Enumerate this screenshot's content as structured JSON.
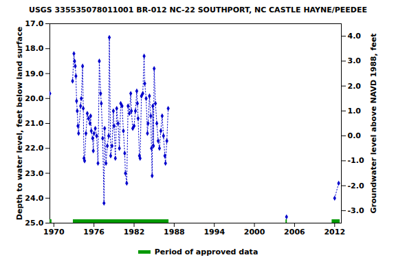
{
  "chart_data": {
    "type": "line",
    "title": "USGS 335535078011001 BR-012 NC-22 SOUTHPORT, NC CASTLE HAYNE/PEEDEE",
    "y_label": "Depth to water level, feet below land surface",
    "y2_label": "Groundwater level above NAVD 1988, feet",
    "color": "#0000cc",
    "marker": "diamond",
    "line_style": "dotted",
    "grid": false,
    "legend": "bottom",
    "xlim": [
      1969.4,
      2013.0
    ],
    "xticks": [
      1970,
      1976,
      1982,
      1988,
      1994,
      2000,
      2006,
      2012
    ],
    "ylim": [
      25.0,
      17.0
    ],
    "yticks": [
      {
        "value": 17,
        "label": "17.0"
      },
      {
        "value": 18,
        "label": "18.0"
      },
      {
        "value": 19,
        "label": "19.0"
      },
      {
        "value": 20,
        "label": "20.0"
      },
      {
        "value": 21,
        "label": "21.0"
      },
      {
        "value": 22,
        "label": "22.0"
      },
      {
        "value": 23,
        "label": "23.0"
      },
      {
        "value": 24,
        "label": "24.0"
      },
      {
        "value": 25,
        "label": "25.0"
      }
    ],
    "y2lim": [
      -3.5,
      4.5
    ],
    "y2ticks": [
      {
        "value": 4,
        "label": "4.0"
      },
      {
        "value": 3,
        "label": "3.0"
      },
      {
        "value": 2,
        "label": "2.0"
      },
      {
        "value": 1,
        "label": "1.0"
      },
      {
        "value": 0,
        "label": "0.0"
      },
      {
        "value": -1,
        "label": "-1.0"
      },
      {
        "value": -2,
        "label": "-2.0"
      },
      {
        "value": -3,
        "label": "-3.0"
      }
    ],
    "x": [
      1969.4,
      null,
      1972.8,
      1973.0,
      1973.1,
      1973.2,
      1973.3,
      1973.4,
      1973.5,
      1973.6,
      1973.7,
      1974.0,
      1974.1,
      1974.3,
      1974.4,
      1974.5,
      1974.6,
      1974.8,
      1975.0,
      1975.2,
      1975.4,
      1975.5,
      1975.6,
      1975.8,
      1975.9,
      1976.0,
      1976.2,
      1976.4,
      1976.6,
      1976.8,
      1977.0,
      1977.1,
      1977.3,
      1977.5,
      1977.6,
      1977.8,
      1978.0,
      1978.2,
      1978.3,
      1978.5,
      1978.7,
      1978.9,
      1979.0,
      1979.2,
      1979.4,
      1979.6,
      1979.8,
      1980.0,
      1980.2,
      1980.4,
      1980.6,
      1980.7,
      1980.9,
      1981.1,
      1981.3,
      1981.5,
      1981.6,
      1981.8,
      1982.0,
      1982.2,
      1982.4,
      1982.5,
      1982.6,
      1982.8,
      1982.9,
      1983.1,
      1983.3,
      1983.5,
      1983.6,
      1983.8,
      1984.0,
      1984.1,
      1984.3,
      1984.5,
      1984.6,
      1984.7,
      1984.8,
      1984.9,
      1985.0,
      1985.2,
      1985.4,
      1985.6,
      1985.8,
      1986.0,
      1986.2,
      1986.4,
      1986.6,
      1986.7,
      1986.9,
      1987.1,
      null,
      2004.8,
      null,
      2012.0,
      2012.6
    ],
    "values": [
      19.8,
      null,
      19.3,
      18.2,
      18.5,
      18.7,
      19.1,
      20.1,
      20.5,
      21.1,
      21.4,
      20.3,
      20.0,
      18.7,
      20.4,
      22.4,
      22.5,
      21.4,
      20.6,
      20.8,
      21.0,
      20.7,
      21.3,
      21.6,
      22.1,
      21.4,
      21.2,
      21.5,
      22.6,
      18.5,
      19.8,
      20.2,
      21.6,
      24.2,
      21.2,
      22.6,
      21.9,
      21.5,
      17.55,
      22.3,
      21.9,
      20.5,
      21.1,
      22.4,
      20.4,
      21.0,
      22.0,
      20.2,
      20.3,
      21.3,
      22.2,
      23.0,
      23.4,
      20.3,
      20.6,
      19.8,
      20.5,
      21.2,
      21.1,
      20.5,
      19.7,
      20.2,
      20.8,
      22.3,
      22.4,
      19.9,
      19.8,
      18.3,
      19.4,
      20.0,
      21.4,
      21.0,
      19.9,
      20.7,
      22.0,
      23.1,
      20.3,
      21.9,
      18.8,
      20.2,
      21.0,
      21.7,
      22.0,
      21.3,
      20.7,
      21.5,
      22.3,
      22.6,
      21.7,
      20.4,
      null,
      24.75,
      null,
      24.0,
      23.4
    ],
    "approved_data": {
      "name": "Period of approved data",
      "color": "#009900",
      "ranges": [
        [
          1969.4,
          1969.7
        ],
        [
          1972.9,
          1987.2
        ],
        [
          2004.7,
          2004.9
        ],
        [
          2011.6,
          2012.8
        ]
      ]
    }
  }
}
